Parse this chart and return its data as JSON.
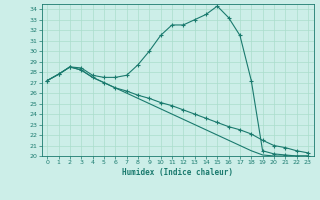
{
  "xlabel": "Humidex (Indice chaleur)",
  "bg_color": "#cceee8",
  "grid_color": "#aaddcc",
  "line_color": "#1a7a6e",
  "xlim": [
    -0.5,
    23.5
  ],
  "ylim": [
    20,
    34.5
  ],
  "x_ticks": [
    0,
    1,
    2,
    3,
    4,
    5,
    6,
    7,
    8,
    9,
    10,
    11,
    12,
    13,
    14,
    15,
    16,
    17,
    18,
    19,
    20,
    21,
    22,
    23
  ],
  "y_ticks": [
    20,
    21,
    22,
    23,
    24,
    25,
    26,
    27,
    28,
    29,
    30,
    31,
    32,
    33,
    34
  ],
  "line1_x": [
    0,
    1,
    2,
    3,
    4,
    5,
    6,
    7,
    8,
    9,
    10,
    11,
    12,
    13,
    14,
    15,
    16,
    17,
    18,
    19,
    20,
    21,
    22,
    23
  ],
  "line1_y": [
    27.2,
    27.8,
    28.5,
    28.4,
    27.7,
    27.5,
    27.5,
    27.7,
    28.7,
    30.0,
    31.5,
    32.5,
    32.5,
    33.0,
    33.5,
    34.3,
    33.2,
    31.5,
    27.2,
    20.5,
    20.2,
    20.1,
    20.0,
    20.0
  ],
  "line2_x": [
    0,
    1,
    2,
    3,
    4,
    5,
    6,
    7,
    8,
    9,
    10,
    11,
    12,
    13,
    14,
    15,
    16,
    17,
    18,
    19,
    20,
    21,
    22,
    23
  ],
  "line2_y": [
    27.2,
    27.8,
    28.5,
    28.2,
    27.5,
    27.0,
    26.5,
    26.2,
    25.8,
    25.5,
    25.1,
    24.8,
    24.4,
    24.0,
    23.6,
    23.2,
    22.8,
    22.5,
    22.1,
    21.5,
    21.0,
    20.8,
    20.5,
    20.3
  ],
  "line3_x": [
    0,
    1,
    2,
    3,
    4,
    5,
    6,
    7,
    8,
    9,
    10,
    11,
    12,
    13,
    14,
    15,
    16,
    17,
    18,
    19,
    20,
    21,
    22,
    23
  ],
  "line3_y": [
    27.2,
    27.8,
    28.5,
    28.2,
    27.5,
    27.0,
    26.5,
    26.0,
    25.5,
    25.0,
    24.5,
    24.0,
    23.5,
    23.0,
    22.5,
    22.0,
    21.5,
    21.0,
    20.5,
    20.1,
    20.0,
    20.0,
    20.0,
    20.0
  ]
}
